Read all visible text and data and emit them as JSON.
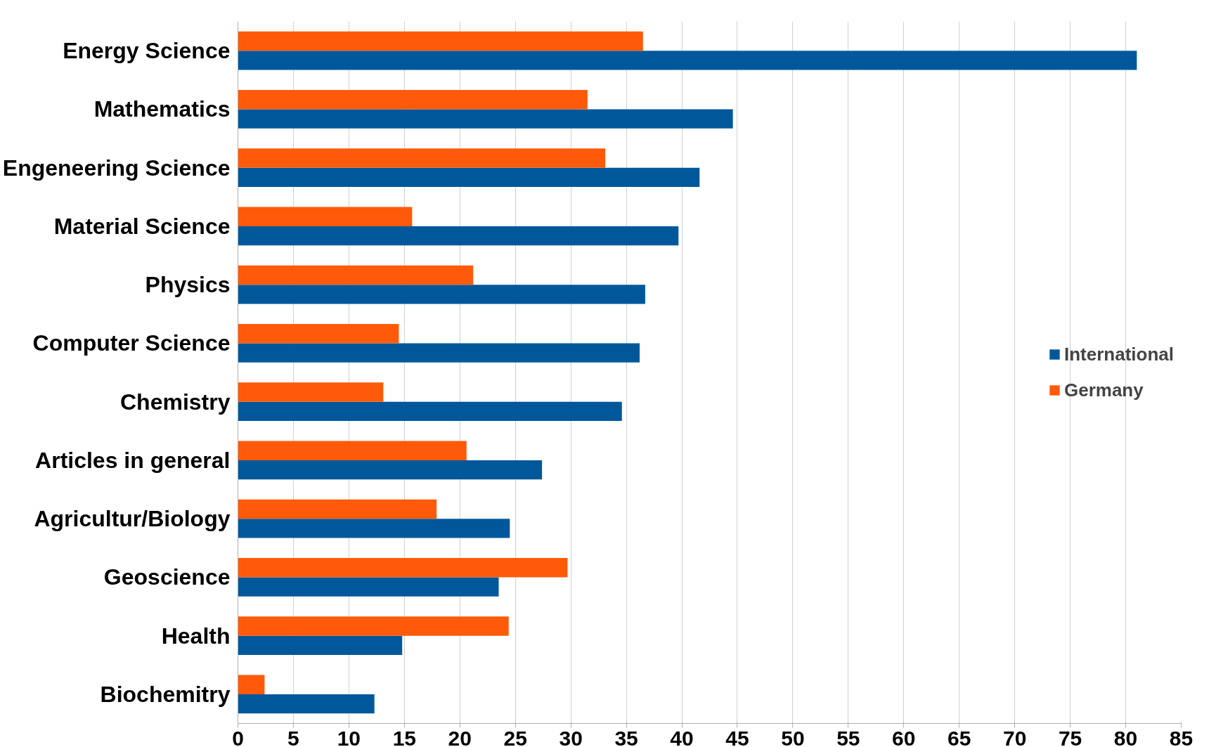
{
  "chart_data": {
    "type": "bar",
    "orientation": "horizontal",
    "categories": [
      "Energy Science",
      "Mathematics",
      "Engeneering Science",
      "Material Science",
      "Physics",
      "Computer Science",
      "Chemistry",
      "Articles in general",
      "Agricultur/Biology",
      "Geoscience",
      "Health",
      "Biochemitry"
    ],
    "series": [
      {
        "name": "International",
        "color": "#00589a",
        "values": [
          81.0,
          44.6,
          41.6,
          39.7,
          36.7,
          36.2,
          34.6,
          27.4,
          24.5,
          23.5,
          14.8,
          12.3
        ]
      },
      {
        "name": "Germany",
        "color": "#ff5a0a",
        "values": [
          36.5,
          31.5,
          33.1,
          15.7,
          21.2,
          14.5,
          13.1,
          20.6,
          17.9,
          29.7,
          24.4,
          2.4
        ]
      }
    ],
    "xlim": [
      0,
      85
    ],
    "xticks": [
      0,
      5,
      10,
      15,
      20,
      25,
      30,
      35,
      40,
      45,
      50,
      55,
      60,
      65,
      70,
      75,
      80,
      85
    ],
    "grid": "x",
    "legend": "right"
  }
}
